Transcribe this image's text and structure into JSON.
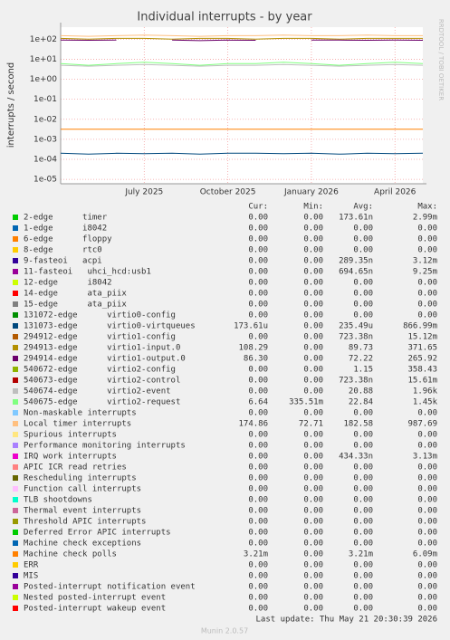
{
  "chart_data": {
    "type": "line",
    "title": "Individual interrupts - by year",
    "ylabel": "interrupts / second",
    "watermark": "RRDTOOL / TOBI OETIKER",
    "log_scale": true,
    "grid": true,
    "ylim": [
      6e-06,
      400
    ],
    "yticks": [
      {
        "value": 100,
        "label": "1e+02"
      },
      {
        "value": 10,
        "label": "1e+01"
      },
      {
        "value": 1,
        "label": "1e+00"
      },
      {
        "value": 0.1,
        "label": "1e-01"
      },
      {
        "value": 0.01,
        "label": "1e-02"
      },
      {
        "value": 0.001,
        "label": "1e-03"
      },
      {
        "value": 0.0001,
        "label": "1e-04"
      },
      {
        "value": 1e-05,
        "label": "1e-05"
      }
    ],
    "xlim": [
      "2025-04",
      "2026-05"
    ],
    "xticks": [
      {
        "value": "2025-07",
        "label": "July 2025"
      },
      {
        "value": "2025-10",
        "label": "October 2025"
      },
      {
        "value": "2026-01",
        "label": "January 2026"
      },
      {
        "value": "2026-04",
        "label": "April 2026"
      }
    ],
    "x": [
      "2025-04",
      "2025-05",
      "2025-06",
      "2025-07",
      "2025-08",
      "2025-09",
      "2025-10",
      "2025-11",
      "2025-12",
      "2026-01",
      "2026-02",
      "2026-03",
      "2026-04",
      "2026-05"
    ],
    "columns": [
      "Cur:",
      "Min:",
      "Avg:",
      "Max:"
    ],
    "series": [
      {
        "name": "2-edge      timer",
        "color": "#00CC00",
        "stats": [
          "0.00",
          "0.00",
          "173.61n",
          "2.99m"
        ]
      },
      {
        "name": "1-edge      i8042",
        "color": "#0066B3",
        "stats": [
          "0.00",
          "0.00",
          "0.00",
          "0.00"
        ]
      },
      {
        "name": "6-edge      floppy",
        "color": "#FF8000",
        "stats": [
          "0.00",
          "0.00",
          "0.00",
          "0.00"
        ]
      },
      {
        "name": "8-edge      rtc0",
        "color": "#FFCC00",
        "stats": [
          "0.00",
          "0.00",
          "0.00",
          "0.00"
        ]
      },
      {
        "name": "9-fasteoi   acpi",
        "color": "#330099",
        "stats": [
          "0.00",
          "0.00",
          "289.35n",
          "3.12m"
        ]
      },
      {
        "name": "11-fasteoi   uhci_hcd:usb1",
        "color": "#990099",
        "stats": [
          "0.00",
          "0.00",
          "694.65n",
          "9.25m"
        ]
      },
      {
        "name": "12-edge      i8042",
        "color": "#CCFF00",
        "stats": [
          "0.00",
          "0.00",
          "0.00",
          "0.00"
        ]
      },
      {
        "name": "14-edge      ata_piix",
        "color": "#FF0000",
        "stats": [
          "0.00",
          "0.00",
          "0.00",
          "0.00"
        ]
      },
      {
        "name": "15-edge      ata_piix",
        "color": "#808080",
        "stats": [
          "0.00",
          "0.00",
          "0.00",
          "0.00"
        ]
      },
      {
        "name": "131072-edge      virtio0-config",
        "color": "#008F00",
        "stats": [
          "0.00",
          "0.00",
          "0.00",
          "0.00"
        ]
      },
      {
        "name": "131073-edge      virtio0-virtqueues",
        "color": "#00487D",
        "stats": [
          "173.61u",
          "0.00",
          "235.49u",
          "866.99m"
        ],
        "values": [
          0.0002,
          0.00018,
          0.0002,
          0.00019,
          0.0002,
          0.00018,
          0.0002,
          0.0002,
          0.00019,
          0.0002,
          0.00018,
          0.0002,
          0.00019,
          0.0002
        ]
      },
      {
        "name": "294912-edge      virtio1-config",
        "color": "#B35A00",
        "stats": [
          "0.00",
          "0.00",
          "723.38n",
          "15.12m"
        ]
      },
      {
        "name": "294913-edge      virtio1-input.0",
        "color": "#B38F00",
        "stats": [
          "108.29",
          "0.00",
          "89.73",
          "371.65"
        ],
        "values": [
          110,
          100,
          110,
          110,
          100,
          110,
          110,
          100,
          110,
          110,
          100,
          110,
          110,
          110
        ]
      },
      {
        "name": "294914-edge      virtio1-output.0",
        "color": "#6B006B",
        "stats": [
          "86.30",
          "0.00",
          "72.22",
          "265.92"
        ],
        "values": [
          90,
          88,
          90,
          null,
          90,
          85,
          90,
          88,
          null,
          90,
          90,
          88,
          90,
          88
        ]
      },
      {
        "name": "540672-edge      virtio2-config",
        "color": "#8FB300",
        "stats": [
          "0.00",
          "0.00",
          "1.15",
          "358.43"
        ]
      },
      {
        "name": "540673-edge      virtio2-control",
        "color": "#B30000",
        "stats": [
          "0.00",
          "0.00",
          "723.38n",
          "15.61m"
        ]
      },
      {
        "name": "540674-edge      virtio2-event",
        "color": "#BEBEBE",
        "stats": [
          "0.00",
          "0.00",
          "20.88",
          "1.96k"
        ],
        "values": [
          5,
          4.5,
          5,
          5.5,
          5,
          4.5,
          5,
          5,
          5.5,
          5,
          4.5,
          5,
          5.5,
          5
        ]
      },
      {
        "name": "540675-edge      virtio2-request",
        "color": "#80FF80",
        "stats": [
          "6.64",
          "335.51m",
          "22.84",
          "1.45k"
        ],
        "values": [
          6,
          5,
          6,
          7,
          6,
          5,
          6,
          6,
          7,
          6,
          5,
          6,
          7,
          6
        ]
      },
      {
        "name": "Non-maskable interrupts",
        "color": "#80C9FF",
        "stats": [
          "0.00",
          "0.00",
          "0.00",
          "0.00"
        ]
      },
      {
        "name": "Local timer interrupts",
        "color": "#FFC080",
        "stats": [
          "174.86",
          "72.71",
          "182.58",
          "987.69"
        ],
        "values": [
          150,
          140,
          150,
          160,
          150,
          140,
          150,
          150,
          160,
          150,
          150,
          160,
          150,
          150
        ]
      },
      {
        "name": "Spurious interrupts",
        "color": "#FFE680",
        "stats": [
          "0.00",
          "0.00",
          "0.00",
          "0.00"
        ]
      },
      {
        "name": "Performance monitoring interrupts",
        "color": "#AA80FF",
        "stats": [
          "0.00",
          "0.00",
          "0.00",
          "0.00"
        ]
      },
      {
        "name": "IRQ work interrupts",
        "color": "#EE00CC",
        "stats": [
          "0.00",
          "0.00",
          "434.33n",
          "3.13m"
        ]
      },
      {
        "name": "APIC ICR read retries",
        "color": "#FF8080",
        "stats": [
          "0.00",
          "0.00",
          "0.00",
          "0.00"
        ]
      },
      {
        "name": "Rescheduling interrupts",
        "color": "#666600",
        "stats": [
          "0.00",
          "0.00",
          "0.00",
          "0.00"
        ]
      },
      {
        "name": "Function call interrupts",
        "color": "#FFBFFF",
        "stats": [
          "0.00",
          "0.00",
          "0.00",
          "0.00"
        ]
      },
      {
        "name": "TLB shootdowns",
        "color": "#00FFCC",
        "stats": [
          "0.00",
          "0.00",
          "0.00",
          "0.00"
        ]
      },
      {
        "name": "Thermal event interrupts",
        "color": "#CC6699",
        "stats": [
          "0.00",
          "0.00",
          "0.00",
          "0.00"
        ]
      },
      {
        "name": "Threshold APIC interrupts",
        "color": "#999900",
        "stats": [
          "0.00",
          "0.00",
          "0.00",
          "0.00"
        ]
      },
      {
        "name": "Deferred Error APIC interrupts",
        "color": "#00CC00",
        "stats": [
          "0.00",
          "0.00",
          "0.00",
          "0.00"
        ]
      },
      {
        "name": "Machine check exceptions",
        "color": "#0066B3",
        "stats": [
          "0.00",
          "0.00",
          "0.00",
          "0.00"
        ]
      },
      {
        "name": "Machine check polls",
        "color": "#FF8000",
        "stats": [
          "3.21m",
          "0.00",
          "3.21m",
          "6.09m"
        ],
        "values": [
          0.00321,
          0.00321,
          0.00321,
          0.00321,
          0.00321,
          0.00321,
          0.00321,
          0.00321,
          0.00321,
          0.00321,
          0.00321,
          0.00321,
          0.00321,
          0.00321
        ]
      },
      {
        "name": "ERR",
        "color": "#FFCC00",
        "stats": [
          "0.00",
          "0.00",
          "0.00",
          "0.00"
        ]
      },
      {
        "name": "MIS",
        "color": "#330099",
        "stats": [
          "0.00",
          "0.00",
          "0.00",
          "0.00"
        ]
      },
      {
        "name": "Posted-interrupt notification event",
        "color": "#990099",
        "stats": [
          "0.00",
          "0.00",
          "0.00",
          "0.00"
        ]
      },
      {
        "name": "Nested posted-interrupt event",
        "color": "#CCFF00",
        "stats": [
          "0.00",
          "0.00",
          "0.00",
          "0.00"
        ]
      },
      {
        "name": "Posted-interrupt wakeup event",
        "color": "#FF0000",
        "stats": [
          "0.00",
          "0.00",
          "0.00",
          "0.00"
        ]
      }
    ]
  },
  "footer": {
    "last_update": "Last update: Thu May 21 20:30:39 2026",
    "version": "Munin 2.0.57"
  }
}
